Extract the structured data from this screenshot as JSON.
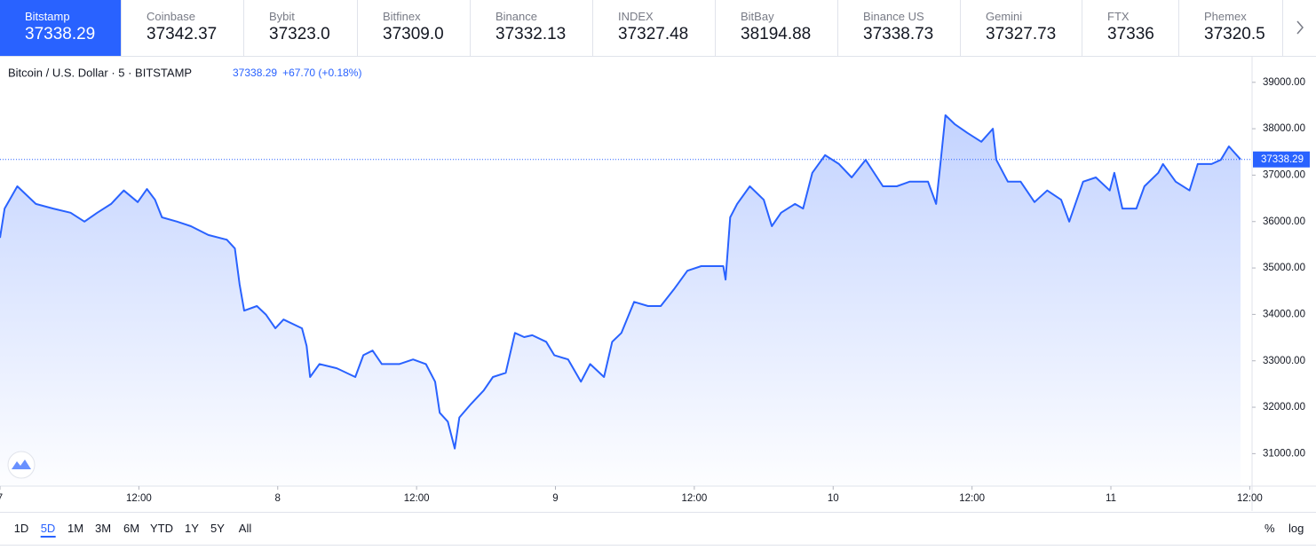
{
  "tabs": [
    {
      "name": "Bitstamp",
      "price": "37338.29"
    },
    {
      "name": "Coinbase",
      "price": "37342.37"
    },
    {
      "name": "Bybit",
      "price": "37323.0"
    },
    {
      "name": "Bitfinex",
      "price": "37309.0"
    },
    {
      "name": "Binance",
      "price": "37332.13"
    },
    {
      "name": "INDEX",
      "price": "37327.48"
    },
    {
      "name": "BitBay",
      "price": "38194.88"
    },
    {
      "name": "Binance US",
      "price": "37338.73"
    },
    {
      "name": "Gemini",
      "price": "37327.73"
    },
    {
      "name": "FTX",
      "price": "37336"
    },
    {
      "name": "Phemex",
      "price": "37320.5"
    }
  ],
  "active_tab": "Bitstamp",
  "chart_data": {
    "type": "line",
    "title": "Bitcoin / U.S. Dollar · 5 · BITSTAMP",
    "last_price": 37338.29,
    "change": "+67.70 (+0.18%)",
    "color": "#2962ff",
    "x": [
      0,
      0.4,
      1.5,
      3.1,
      4.6,
      6.1,
      7.3,
      8.4,
      9.6,
      10.7,
      11.9,
      12.7,
      13.4,
      14.0,
      15.3,
      16.5,
      18.0,
      19.6,
      20.3,
      20.7,
      21.1,
      22.2,
      23.0,
      23.8,
      24.5,
      26.1,
      26.5,
      26.8,
      27.6,
      29.1,
      30.7,
      31.4,
      32.2,
      33.0,
      34.5,
      35.7,
      36.8,
      37.6,
      38.0,
      38.7,
      39.3,
      39.7,
      40.7,
      41.8,
      42.6,
      43.7,
      44.5,
      45.3,
      46.0,
      47.2,
      47.9,
      49.1,
      50.2,
      51.0,
      52.2,
      52.9,
      53.7,
      54.8,
      56.0,
      57.1,
      58.3,
      59.4,
      60.6,
      61.7,
      62.5,
      62.7,
      63.1,
      63.7,
      64.8,
      66.0,
      66.7,
      67.5,
      68.7,
      69.4,
      70.2,
      71.3,
      72.5,
      73.6,
      74.8,
      76.3,
      77.5,
      78.6,
      80.2,
      80.9,
      81.3,
      81.7,
      82.5,
      83.6,
      84.8,
      85.8,
      86.1,
      87.1,
      88.2,
      89.4,
      90.5,
      91.7,
      92.4,
      93.6,
      94.7,
      95.9,
      96.3,
      97.0,
      98.2,
      98.9,
      100.1,
      100.5,
      101.6,
      102.8,
      103.5,
      104.7,
      105.5,
      106.2,
      107.2
    ],
    "values": [
      35650,
      36280,
      36760,
      36380,
      36280,
      36190,
      36000,
      36190,
      36380,
      36670,
      36420,
      36700,
      36470,
      36090,
      36000,
      35900,
      35710,
      35610,
      35420,
      34650,
      34080,
      34180,
      33990,
      33700,
      33890,
      33700,
      33320,
      32650,
      32930,
      32840,
      32650,
      33120,
      33220,
      32930,
      32930,
      33030,
      32930,
      32550,
      31880,
      31690,
      31110,
      31780,
      32070,
      32360,
      32650,
      32740,
      33600,
      33510,
      33550,
      33410,
      33120,
      33030,
      32550,
      32930,
      32650,
      33410,
      33600,
      34270,
      34180,
      34180,
      34560,
      34940,
      35040,
      35040,
      35040,
      34750,
      36090,
      36380,
      36760,
      36470,
      35900,
      36190,
      36380,
      36280,
      37050,
      37430,
      37240,
      36950,
      37330,
      36760,
      36760,
      36860,
      36860,
      36380,
      37330,
      38290,
      38100,
      37910,
      37720,
      38000,
      37330,
      36860,
      36860,
      36420,
      36670,
      36470,
      36000,
      36860,
      36950,
      36670,
      37050,
      36280,
      36280,
      36760,
      37050,
      37240,
      36860,
      36670,
      37240,
      37240,
      37330,
      37620,
      37338
    ],
    "xlim": [
      0,
      108.2
    ],
    "xticks": [
      {
        "value": 0,
        "label": "7"
      },
      {
        "value": 12,
        "label": "12:00"
      },
      {
        "value": 24,
        "label": "8"
      },
      {
        "value": 36,
        "label": "12:00"
      },
      {
        "value": 48,
        "label": "9"
      },
      {
        "value": 60,
        "label": "12:00"
      },
      {
        "value": 72,
        "label": "10"
      },
      {
        "value": 84,
        "label": "12:00"
      },
      {
        "value": 96,
        "label": "11"
      },
      {
        "value": 108,
        "label": "12:00"
      }
    ],
    "ylim": [
      30300,
      39550
    ],
    "yticks": [
      {
        "value": 31000,
        "label": "31000.00"
      },
      {
        "value": 32000,
        "label": "32000.00"
      },
      {
        "value": 33000,
        "label": "33000.00"
      },
      {
        "value": 34000,
        "label": "34000.00"
      },
      {
        "value": 35000,
        "label": "35000.00"
      },
      {
        "value": 36000,
        "label": "36000.00"
      },
      {
        "value": 37000,
        "label": "37000.00"
      },
      {
        "value": 38000,
        "label": "38000.00"
      },
      {
        "value": 39000,
        "label": "39000.00"
      }
    ]
  },
  "ranges": [
    "1D",
    "5D",
    "1M",
    "3M",
    "6M",
    "YTD",
    "1Y",
    "5Y",
    "All"
  ],
  "active_range": "5D",
  "scale_options": [
    "%",
    "log"
  ]
}
